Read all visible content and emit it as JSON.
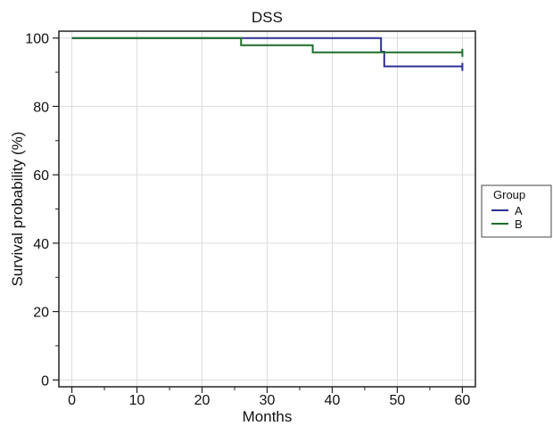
{
  "chart_data": {
    "type": "line",
    "title": "DSS",
    "xlabel": "Months",
    "ylabel": "Survival probability (%)",
    "xlim": [
      -2,
      62
    ],
    "ylim": [
      -2,
      102
    ],
    "xticks": [
      0,
      10,
      20,
      30,
      40,
      50,
      60
    ],
    "yticks": [
      0,
      20,
      40,
      60,
      80,
      100
    ],
    "grid": true,
    "legend_position": "right",
    "legend_title": "Group",
    "series": [
      {
        "name": "A",
        "color": "#2e3192",
        "step": true,
        "x": [
          0,
          47.5,
          47.5,
          48,
          48,
          60
        ],
        "y": [
          100,
          100,
          96,
          96,
          91.7,
          91.7
        ]
      },
      {
        "name": "B",
        "color": "#1f6e2a",
        "step": true,
        "x": [
          0,
          26,
          26,
          37,
          37,
          60
        ],
        "y": [
          100,
          100,
          97.9,
          97.9,
          95.8,
          95.8
        ]
      }
    ]
  }
}
